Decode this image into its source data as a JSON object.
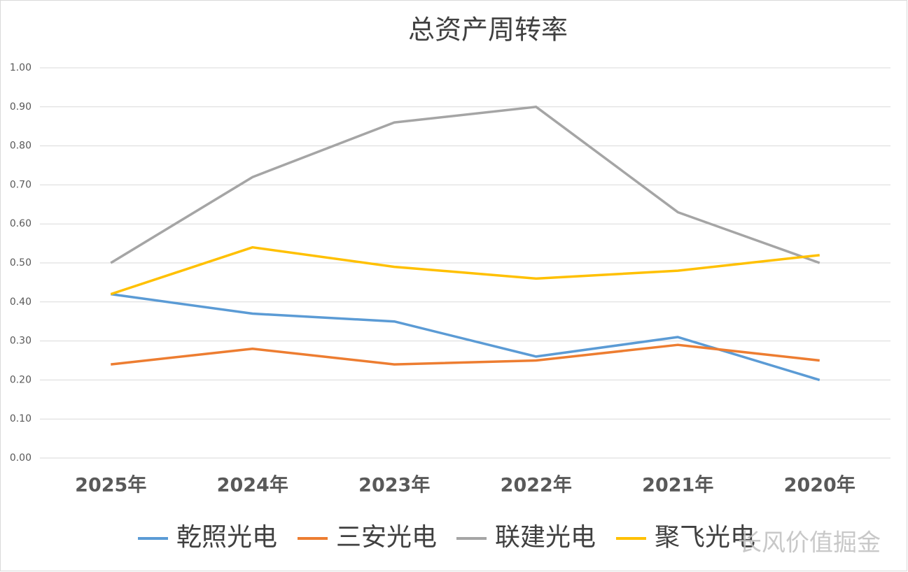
{
  "chart_data": {
    "type": "line",
    "title": "总资产周转率",
    "categories": [
      "2025年",
      "2024年",
      "2023年",
      "2022年",
      "2021年",
      "2020年"
    ],
    "series": [
      {
        "name": "乾照光电",
        "color": "#5b9bd5",
        "values": [
          0.42,
          0.37,
          0.35,
          0.26,
          0.31,
          0.2
        ]
      },
      {
        "name": "三安光电",
        "color": "#ed7d31",
        "values": [
          0.24,
          0.28,
          0.24,
          0.25,
          0.29,
          0.25
        ]
      },
      {
        "name": "联建光电",
        "color": "#a5a5a5",
        "values": [
          0.5,
          0.72,
          0.86,
          0.9,
          0.63,
          0.5
        ]
      },
      {
        "name": "聚飞光电",
        "color": "#ffc000",
        "values": [
          0.42,
          0.54,
          0.49,
          0.46,
          0.48,
          0.52
        ]
      }
    ],
    "ylim": [
      0,
      1
    ],
    "yticks": [
      {
        "value": 0,
        "label": "0.00"
      },
      {
        "value": 0.1,
        "label": "0.10"
      },
      {
        "value": 0.2,
        "label": "0.20"
      },
      {
        "value": 0.3,
        "label": "0.30"
      },
      {
        "value": 0.4,
        "label": "0.40"
      },
      {
        "value": 0.5,
        "label": "0.50"
      },
      {
        "value": 0.6,
        "label": "0.60"
      },
      {
        "value": 0.7,
        "label": "0.70"
      },
      {
        "value": 0.8,
        "label": "0.80"
      },
      {
        "value": 0.9,
        "label": "0.90"
      },
      {
        "value": 1,
        "label": "1.00"
      }
    ],
    "grid": true,
    "legend": "bottom",
    "watermark": "长风价值掘金"
  }
}
